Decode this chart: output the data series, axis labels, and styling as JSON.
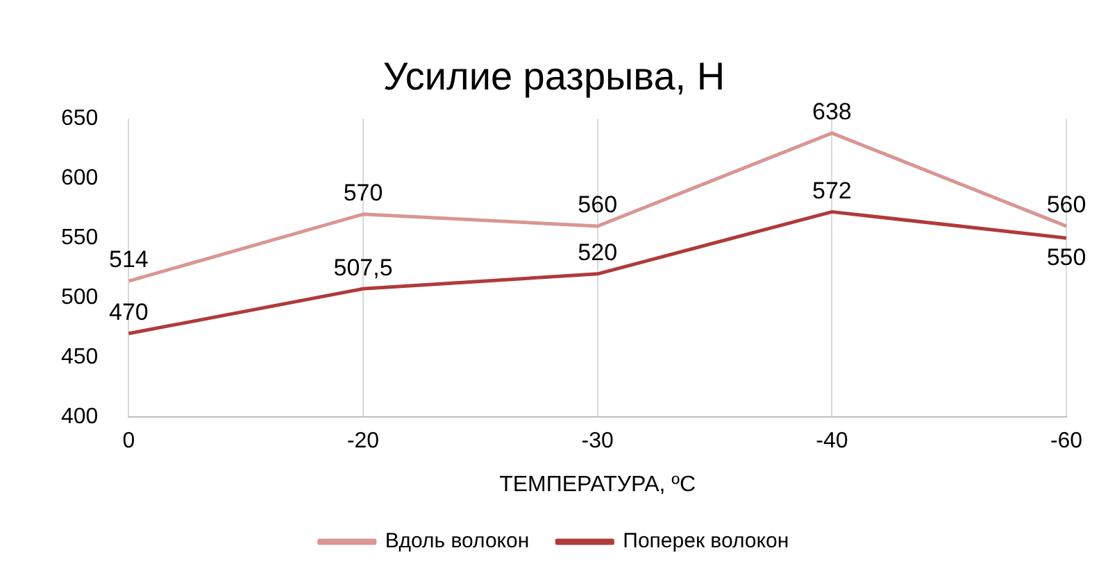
{
  "chart_data": {
    "type": "line",
    "title": "Усилие разрыва, Н",
    "xlabel": "ТЕМПЕРАТУРА, ºC",
    "categories": [
      "0",
      "-20",
      "-30",
      "-40",
      "-60"
    ],
    "series": [
      {
        "name": "Вдоль волокон",
        "color": "#d99694",
        "values": [
          514,
          570,
          560,
          638,
          560
        ],
        "value_labels": [
          "514",
          "570",
          "560",
          "638",
          "560"
        ]
      },
      {
        "name": "Поперек волокон",
        "color": "#b03a3a",
        "values": [
          470,
          507.5,
          520,
          572,
          550
        ],
        "value_labels": [
          "470",
          "507,5",
          "520",
          "572",
          "550"
        ]
      }
    ],
    "ylim": [
      400,
      650
    ],
    "yticks": [
      400,
      450,
      500,
      550,
      600,
      650
    ],
    "grid": "x",
    "legend": "bottom",
    "marker": "none"
  }
}
